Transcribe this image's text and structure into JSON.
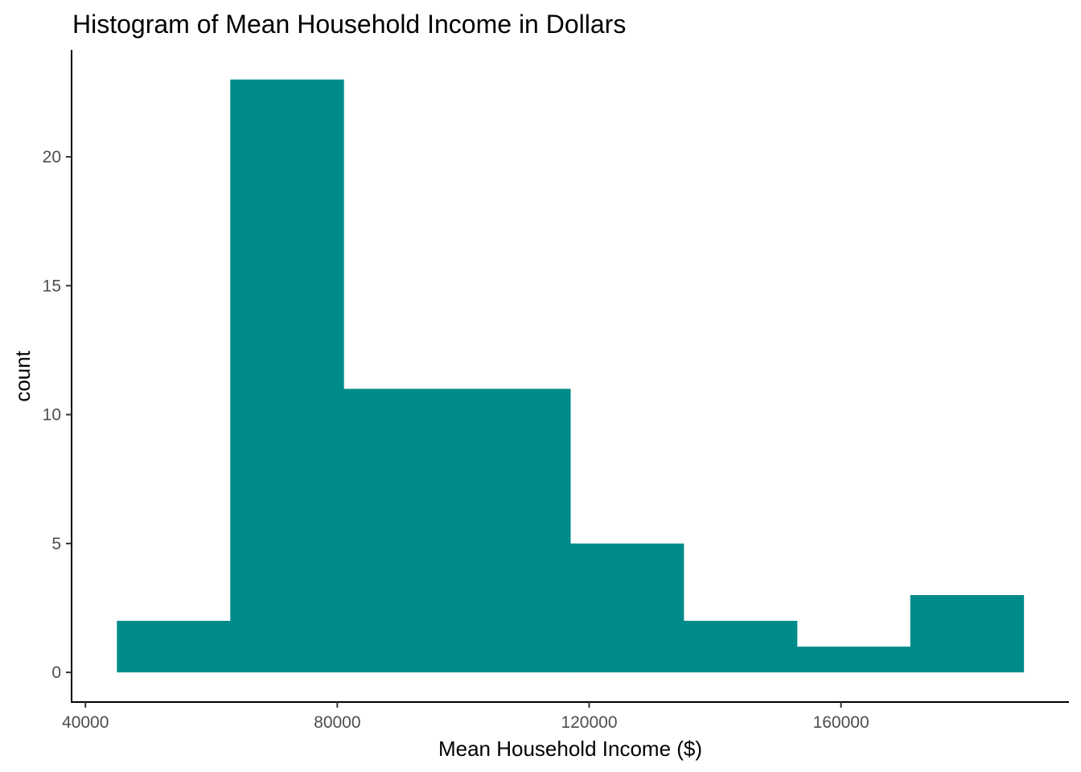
{
  "chart_data": {
    "type": "bar",
    "title": "Histogram of Mean Household Income in Dollars",
    "xlabel": "Mean Household Income ($)",
    "ylabel": "count",
    "bins": [
      {
        "x0": 45000,
        "x1": 63000,
        "count": 2
      },
      {
        "x0": 63000,
        "x1": 81000,
        "count": 23
      },
      {
        "x0": 81000,
        "x1": 99000,
        "count": 11
      },
      {
        "x0": 99000,
        "x1": 117000,
        "count": 11
      },
      {
        "x0": 117000,
        "x1": 135000,
        "count": 5
      },
      {
        "x0": 135000,
        "x1": 153000,
        "count": 2
      },
      {
        "x0": 153000,
        "x1": 171000,
        "count": 1
      },
      {
        "x0": 171000,
        "x1": 189000,
        "count": 3
      }
    ],
    "xlim": [
      37800,
      196200
    ],
    "ylim": [
      -1.15,
      24.15
    ],
    "x_ticks": [
      40000,
      80000,
      120000,
      160000
    ],
    "x_tick_labels": [
      "40000",
      "80000",
      "120000",
      "160000"
    ],
    "y_ticks": [
      0,
      5,
      10,
      15,
      20
    ],
    "y_tick_labels": [
      "0",
      "5",
      "10",
      "15",
      "20"
    ],
    "bar_color": "#008b8b",
    "grid": false,
    "legend": "none"
  }
}
